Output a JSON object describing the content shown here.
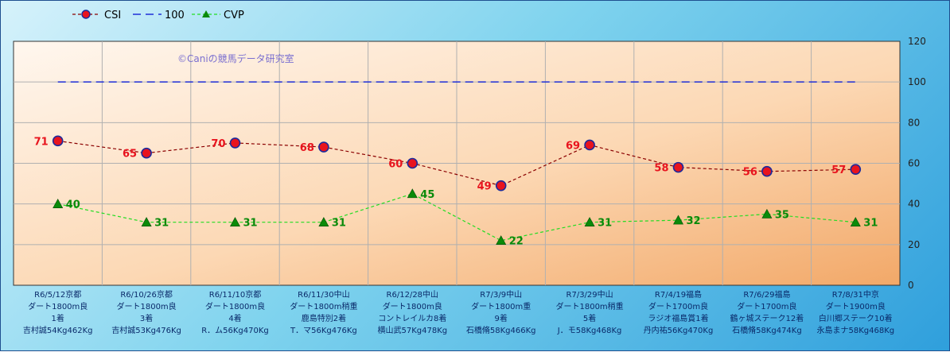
{
  "chart_data": {
    "type": "line",
    "watermark": "©Caniの競馬データ研究室",
    "categories": [
      [
        "R6/5/12京都",
        "ダート1800m良",
        "1着",
        "吉村誠54Kg462Kg"
      ],
      [
        "R6/10/26京都",
        "ダート1800m良",
        "3着",
        "吉村誠53Kg476Kg"
      ],
      [
        "R6/11/10京都",
        "ダート1800m良",
        "4着",
        "R．ム56Kg470Kg"
      ],
      [
        "R6/11/30中山",
        "ダート1800m稍重",
        "鹿島特別2着",
        "T．マ56Kg476Kg"
      ],
      [
        "R6/12/28中山",
        "ダート1800m良",
        "コントレイルカ8着",
        "横山武57Kg478Kg"
      ],
      [
        "R7/3/9中山",
        "ダート1800m重",
        "9着",
        "石橋脩58Kg466Kg"
      ],
      [
        "R7/3/29中山",
        "ダート1800m稍重",
        "5着",
        "J．モ58Kg468Kg"
      ],
      [
        "R7/4/19福島",
        "ダート1700m良",
        "ラジオ福島賞1着",
        "丹内祐56Kg470Kg"
      ],
      [
        "R7/6/29福島",
        "ダート1700m良",
        "鶴ヶ城ステーク12着",
        "石橋脩58Kg474Kg"
      ],
      [
        "R7/8/31中京",
        "ダート1900m良",
        "白川郷ステーク10着",
        "永島まナ58Kg468Kg"
      ]
    ],
    "series": [
      {
        "name": "CSI",
        "values": [
          71,
          65,
          70,
          68,
          60,
          49,
          69,
          58,
          56,
          57
        ],
        "color": "#8b0000",
        "marker": "#e8141e"
      },
      {
        "name": "100",
        "values": [
          100,
          100,
          100,
          100,
          100,
          100,
          100,
          100,
          100,
          100
        ],
        "color": "#1f2fd8"
      },
      {
        "name": "CVP",
        "values": [
          40,
          31,
          31,
          31,
          45,
          22,
          31,
          32,
          35,
          31
        ],
        "color": "#22dd22",
        "marker": "#0a8a0a"
      }
    ],
    "yticks": [
      0,
      20,
      40,
      60,
      80,
      100,
      120
    ],
    "ylim": [
      0,
      120
    ],
    "y_axis_side": "right",
    "legend_position": "top-left",
    "grid": true
  }
}
